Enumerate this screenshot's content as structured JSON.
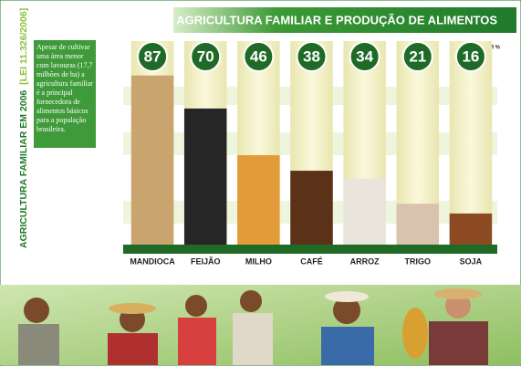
{
  "chart_data": {
    "type": "bar",
    "title": "AGRICULTURA FAMILIAR E PRODUÇÃO DE ALIMENTOS",
    "side_title": "AGRICULTURA FAMILIAR EM 2006",
    "side_subtitle": "[LEI 11.326/2006]",
    "note": "Apesar de cultivar uma área menor com lavouras (17,7 milhões de ha) a agricultura familiar é a principal fornecedora de alimentos básicos para a população brasileira.",
    "unit": "EM %",
    "categories": [
      "MANDIOCA",
      "FEIJÃO",
      "MILHO",
      "CAFÉ",
      "ARROZ",
      "TRIGO",
      "SOJA"
    ],
    "values": [
      87,
      70,
      46,
      38,
      34,
      21,
      16
    ],
    "colors": [
      "#c9a46e",
      "#262626",
      "#e39b3a",
      "#5b3218",
      "#e9e5dc",
      "#d9c3ae",
      "#8b4a22"
    ],
    "ylim": [
      0,
      100
    ]
  }
}
